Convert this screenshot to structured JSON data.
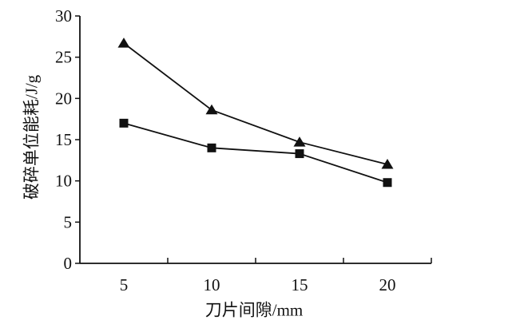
{
  "figure": {
    "background": "#ffffff",
    "ink_color": "#111111"
  },
  "chart_data": {
    "type": "line",
    "title": "",
    "xlabel": "刀片间隙/mm",
    "ylabel": "破碎单位能耗/J/g",
    "categories": [
      "5",
      "10",
      "15",
      "20"
    ],
    "x_values_mm": [
      5,
      10,
      15,
      20
    ],
    "yticks": [
      0,
      5,
      10,
      15,
      20,
      25,
      30
    ],
    "ylim": [
      0,
      30
    ],
    "grid": false,
    "legend_position": "none",
    "series": [
      {
        "name": "triangle-series",
        "marker": "triangle",
        "color": "#111111",
        "values": [
          26.7,
          18.6,
          14.7,
          12.0
        ]
      },
      {
        "name": "square-series",
        "marker": "square",
        "color": "#111111",
        "values": [
          17.0,
          14.0,
          13.3,
          9.8
        ]
      }
    ]
  }
}
